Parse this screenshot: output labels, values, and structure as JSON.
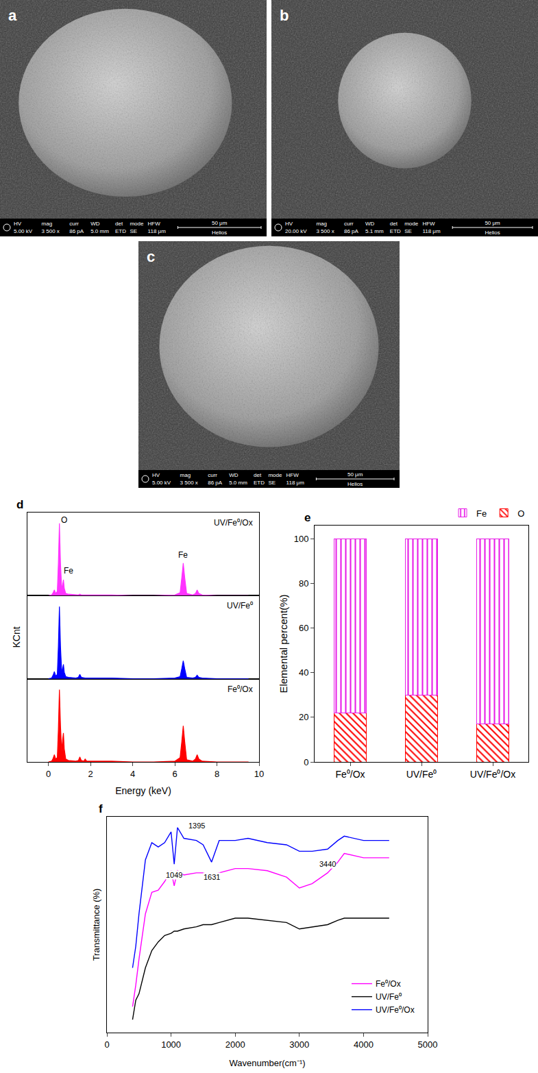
{
  "images": [
    {
      "letter": "a",
      "info_bar": [
        {
          "label": "HV",
          "value": "5.00 kV"
        },
        {
          "label": "mag",
          "value": "3 500 x"
        },
        {
          "label": "curr",
          "value": "86 pA"
        },
        {
          "label": "WD",
          "value": "5.0 mm"
        },
        {
          "label": "det",
          "value": "ETD"
        },
        {
          "label": "mode",
          "value": "SE"
        },
        {
          "label": "HFW",
          "value": "118 μm"
        }
      ],
      "scale_bar": "50 μm",
      "instrument": "Helios"
    },
    {
      "letter": "b",
      "info_bar": [
        {
          "label": "HV",
          "value": "20.00 kV"
        },
        {
          "label": "mag",
          "value": "3 500 x"
        },
        {
          "label": "curr",
          "value": "86 pA"
        },
        {
          "label": "WD",
          "value": "5.1 mm"
        },
        {
          "label": "det",
          "value": "ETD"
        },
        {
          "label": "mode",
          "value": "SE"
        },
        {
          "label": "HFW",
          "value": "118 μm"
        }
      ],
      "scale_bar": "50 μm",
      "instrument": "Helios"
    },
    {
      "letter": "c",
      "info_bar": [
        {
          "label": "HV",
          "value": "5.00 kV"
        },
        {
          "label": "mag",
          "value": "3 500 x"
        },
        {
          "label": "curr",
          "value": "86 pA"
        },
        {
          "label": "WD",
          "value": "5.0 mm"
        },
        {
          "label": "det",
          "value": "ETD"
        },
        {
          "label": "mode",
          "value": "SE"
        },
        {
          "label": "HFW",
          "value": "118 μm"
        }
      ],
      "scale_bar": "50 μm",
      "instrument": "Helios"
    }
  ],
  "chart_data": [
    {
      "panel": "d",
      "type": "line",
      "x_label": "Energy (keV)",
      "y_label": "KCnt",
      "x": [
        0,
        0.15,
        0.22,
        0.28,
        0.34,
        0.42,
        0.47,
        0.52,
        0.57,
        0.63,
        0.67,
        0.71,
        0.75,
        0.82,
        0.95,
        1.3,
        1.42,
        1.49,
        1.56,
        1.68,
        1.74,
        1.82,
        2.2,
        3,
        4,
        5,
        6,
        6.25,
        6.33,
        6.4,
        6.47,
        6.56,
        6.85,
        6.98,
        7.06,
        7.14,
        7.3,
        8,
        9,
        9.5
      ],
      "series": [
        {
          "name": "UV/Fe⁰/Ox",
          "color": "#ff33ff",
          "values": [
            0,
            1,
            4,
            8,
            3,
            6,
            45,
            100,
            45,
            8,
            15,
            22,
            10,
            3,
            2,
            1,
            1,
            2,
            1,
            1,
            1,
            1,
            1,
            1,
            0,
            0,
            1,
            4,
            25,
            45,
            25,
            3,
            1,
            3,
            8,
            3,
            1,
            0,
            0,
            0
          ],
          "labels": [
            {
              "text": "O",
              "x": 0.75,
              "y": 96
            },
            {
              "text": "Fe",
              "x": 0.95,
              "y": 26
            },
            {
              "text": "Fe",
              "x": 6.4,
              "y": 48
            }
          ]
        },
        {
          "name": "UV/Fe⁰",
          "color": "#0000ff",
          "values": [
            0,
            1,
            5,
            10,
            4,
            6,
            45,
            100,
            45,
            8,
            14,
            20,
            9,
            3,
            2,
            1,
            2,
            6,
            2,
            1,
            1,
            1,
            1,
            1,
            0,
            0,
            1,
            3,
            14,
            25,
            14,
            2,
            1,
            2,
            5,
            2,
            1,
            0,
            0,
            0
          ]
        },
        {
          "name": "Fe⁰/Ox",
          "color": "#ff0000",
          "values": [
            0,
            1,
            5,
            10,
            4,
            6,
            45,
            100,
            50,
            15,
            30,
            40,
            18,
            4,
            2,
            1,
            2,
            7,
            2,
            1,
            4,
            1,
            1,
            1,
            0,
            0,
            1,
            6,
            28,
            50,
            28,
            3,
            1,
            4,
            10,
            4,
            1,
            0,
            0,
            0
          ]
        }
      ],
      "xlim": [
        -1,
        10
      ],
      "xticks": [
        0,
        2,
        4,
        6,
        8,
        10
      ],
      "ylim": [
        0,
        115
      ],
      "tick_labels": "x",
      "grid": false
    },
    {
      "panel": "e",
      "type": "bar",
      "y_label": "Elemental percent(%)",
      "categories": [
        "Fe⁰/Ox",
        "UV/Fe⁰",
        "UV/Fe⁰/Ox"
      ],
      "series": [
        {
          "name": "O",
          "color": "#ff0000",
          "marker": "diagonal_hatch",
          "values": [
            22,
            30,
            17
          ]
        },
        {
          "name": "Fe",
          "color": "#e81ee8",
          "marker": "vertical_hatch",
          "values": [
            78,
            70,
            83
          ]
        }
      ],
      "stacked": true,
      "ylim": [
        0,
        106
      ],
      "yticks": [
        0,
        20,
        40,
        60,
        80,
        100
      ],
      "legend": "top right",
      "grid": false
    },
    {
      "panel": "f",
      "type": "line",
      "x_label": "Wavenumber(cm⁻¹)",
      "y_label": "Transmittance (%)",
      "x": [
        400,
        450,
        500,
        600,
        700,
        800,
        900,
        1000,
        1049,
        1100,
        1200,
        1395,
        1500,
        1631,
        1750,
        2000,
        2200,
        2500,
        2800,
        3000,
        3200,
        3440,
        3600,
        3700,
        4000,
        4400
      ],
      "series": [
        {
          "name": "Fe⁰/Ox",
          "color": "#ff00ff",
          "values": [
            12,
            22,
            34,
            55,
            65,
            66,
            70,
            75,
            68,
            75,
            73,
            74,
            74,
            73,
            74,
            76,
            76,
            75,
            72,
            67,
            69,
            74,
            79,
            83,
            81,
            81
          ]
        },
        {
          "name": "UV/Fe⁰",
          "color": "#000000",
          "values": [
            6,
            15,
            18,
            30,
            38,
            42,
            45,
            46,
            47,
            47,
            48,
            49,
            50,
            50,
            51,
            53,
            53,
            52,
            51,
            48,
            49,
            50,
            52,
            53,
            53,
            53
          ]
        },
        {
          "name": "UV/Fe⁰/Ox",
          "color": "#0000ff",
          "values": [
            30,
            40,
            55,
            80,
            88,
            86,
            88,
            93,
            78,
            95,
            90,
            89,
            87,
            79,
            89,
            89,
            90,
            88,
            87,
            84,
            84,
            85,
            89,
            91,
            89,
            89
          ]
        }
      ],
      "annotations": [
        {
          "text": "1049",
          "x": 1049,
          "y": 73
        },
        {
          "text": "1395",
          "x": 1395,
          "y": 96
        },
        {
          "text": "1631",
          "x": 1631,
          "y": 72
        },
        {
          "text": "3440",
          "x": 3440,
          "y": 78
        }
      ],
      "xlim": [
        0,
        5000
      ],
      "xticks": [
        0,
        1000,
        2000,
        3000,
        4000,
        5000
      ],
      "ylim": [
        0,
        100
      ],
      "tick_labels": "x",
      "legend": "bottom right",
      "grid": false
    }
  ]
}
